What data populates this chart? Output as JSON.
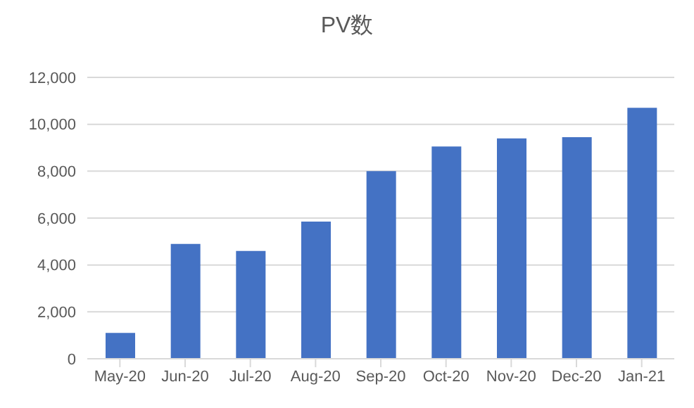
{
  "chart_data": {
    "type": "bar",
    "title": "PV数",
    "categories": [
      "May-20",
      "Jun-20",
      "Jul-20",
      "Aug-20",
      "Sep-20",
      "Oct-20",
      "Nov-20",
      "Dec-20",
      "Jan-21"
    ],
    "values": [
      1100,
      4900,
      4600,
      5850,
      8000,
      9050,
      9400,
      9450,
      10700
    ],
    "color": "#4472c4",
    "ylim": [
      0,
      12000
    ],
    "yticks": [
      0,
      {
        "value": 2000,
        "label": "2,000"
      },
      {
        "value": 4000,
        "label": "4,000"
      },
      {
        "value": 6000,
        "label": "6,000"
      },
      {
        "value": 8000,
        "label": "8,000"
      },
      {
        "value": 10000,
        "label": "10,000"
      },
      {
        "value": 12000,
        "label": "12,000"
      }
    ],
    "grid": "y"
  }
}
